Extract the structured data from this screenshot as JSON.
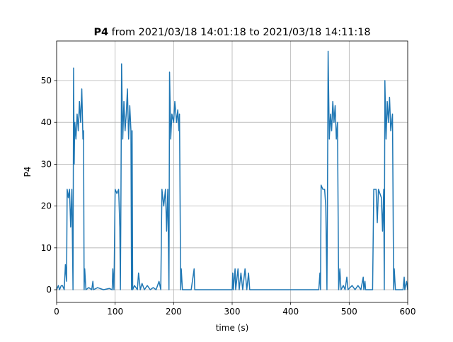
{
  "chart_data": {
    "type": "line",
    "title": {
      "bold": "P4",
      "text": "from 2021/03/18 14:01:18 to 2021/03/18 14:11:18"
    },
    "x_label": "time (s)",
    "y_label": "P4",
    "xlim": [
      0,
      600
    ],
    "xticks": [
      0,
      100,
      200,
      300,
      400,
      500,
      600
    ],
    "ylim": [
      -3.04,
      59.46
    ],
    "yticks": [
      0,
      10,
      20,
      30,
      40,
      50
    ],
    "grid": true,
    "series": [
      {
        "name": "P4",
        "color": "#1f77b4",
        "x": [
          0,
          3,
          5,
          8,
          10,
          13,
          15,
          17,
          18,
          20,
          22,
          24,
          26,
          28,
          29,
          30,
          31,
          33,
          35,
          37,
          39,
          41,
          43,
          45,
          46,
          47,
          48,
          50,
          55,
          60,
          62,
          63,
          70,
          80,
          90,
          95,
          96,
          98,
          100,
          103,
          106,
          108,
          109,
          110,
          111,
          113,
          115,
          117,
          119,
          121,
          123,
          125,
          127,
          128,
          129,
          130,
          133,
          138,
          140,
          143,
          146,
          150,
          155,
          160,
          165,
          170,
          175,
          178,
          180,
          183,
          186,
          188,
          190,
          192,
          193,
          195,
          197,
          200,
          202,
          205,
          207,
          209,
          210,
          212,
          213,
          215,
          230,
          235,
          236,
          300,
          301,
          302,
          305,
          306,
          310,
          312,
          315,
          318,
          322,
          325,
          328,
          330,
          440,
          448,
          450,
          451,
          452,
          455,
          458,
          460,
          462,
          463,
          464,
          466,
          468,
          470,
          472,
          474,
          476,
          478,
          480,
          482,
          484,
          486,
          490,
          493,
          496,
          498,
          505,
          510,
          515,
          520,
          524,
          525,
          527,
          528,
          540,
          542,
          546,
          548,
          550,
          555,
          557,
          559,
          560,
          561,
          563,
          565,
          567,
          569,
          571,
          574,
          576,
          577,
          579,
          585,
          592,
          594,
          595,
          598,
          600
        ],
        "values": [
          0,
          1,
          0,
          1,
          1,
          0,
          6,
          2,
          24,
          22,
          24,
          15,
          24,
          0,
          53,
          30,
          40,
          36,
          42,
          38,
          45,
          40,
          48,
          36,
          38,
          0,
          5,
          0,
          0.5,
          0,
          2,
          0,
          0.5,
          0,
          0.3,
          0,
          5,
          0,
          24,
          23,
          24,
          15,
          0,
          24,
          54,
          36,
          45,
          38,
          42,
          48,
          36,
          44,
          38,
          0,
          38,
          0,
          1,
          0,
          4,
          0,
          1.5,
          0,
          1,
          0,
          0.5,
          0,
          2,
          0,
          24,
          20,
          24,
          14,
          24,
          0,
          52,
          36,
          42,
          40,
          45,
          40,
          43,
          38,
          42,
          0,
          5,
          0,
          0,
          5,
          0,
          0,
          4,
          0,
          5,
          0,
          5,
          0,
          4,
          0,
          5,
          0,
          4,
          0,
          0,
          0,
          4,
          0,
          25,
          24,
          24,
          20,
          0,
          25,
          57,
          36,
          42,
          38,
          45,
          40,
          44,
          36,
          40,
          0,
          5,
          0,
          1,
          0,
          3,
          0,
          1,
          0,
          1,
          0,
          3,
          0,
          2,
          0,
          0,
          24,
          24,
          16,
          24,
          22,
          14,
          24,
          0,
          50,
          36,
          45,
          40,
          46,
          38,
          42,
          0,
          5,
          0,
          0,
          0,
          3,
          0,
          2,
          0
        ]
      }
    ]
  }
}
